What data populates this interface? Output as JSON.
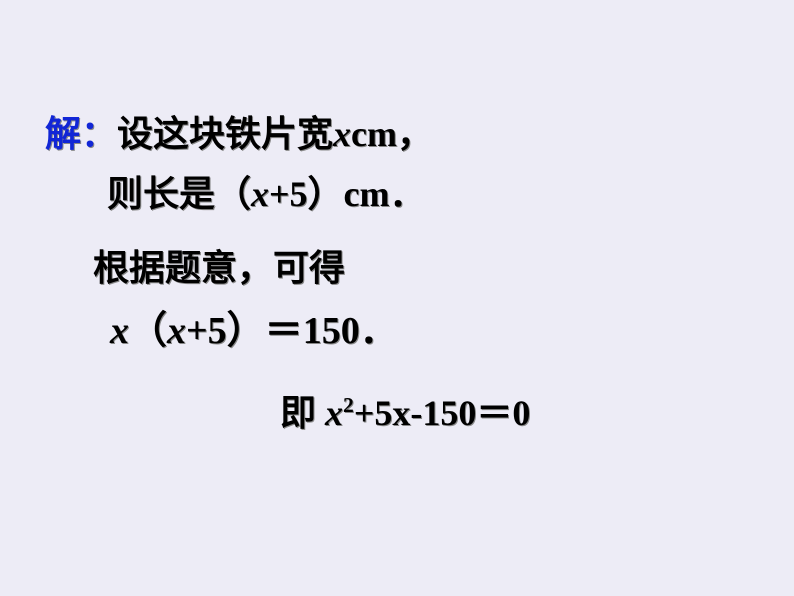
{
  "solution": {
    "label": "解：",
    "line1_rest_a": "设这块铁片宽",
    "line1_var": "x",
    "line1_unit": "cm",
    "line1_end": "，",
    "line2_a": "则长是（",
    "line2_var": "x",
    "line2_b": "+5",
    "line2_c": "）",
    "line2_unit": "cm",
    "line2_end": "．",
    "line3": "根据题意，可得",
    "line4_var1": "x",
    "line4_a": "（",
    "line4_var2": "x",
    "line4_b": "+5",
    "line4_c": "）＝",
    "line4_val": "150",
    "line4_end": "．",
    "line5_a": "即 ",
    "line5_var": "x",
    "line5_sup": "2",
    "line5_b": "+5x-150",
    "line5_c": "＝",
    "line5_d": "0"
  },
  "style": {
    "background": "#edecf6",
    "text_color": "#000000",
    "label_color": "#1126d6",
    "base_fontsize": 36,
    "eq_fontsize": 38,
    "font_weight": "bold"
  }
}
